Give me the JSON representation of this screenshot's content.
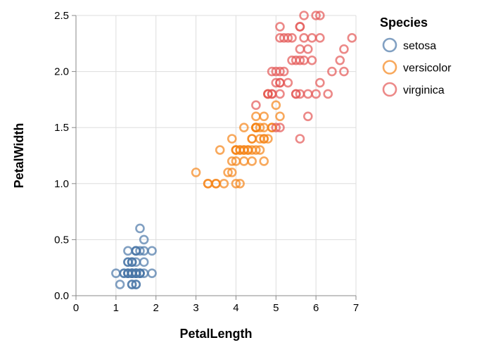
{
  "chart_data": {
    "type": "scatter",
    "xlabel": "PetalLength",
    "ylabel": "PetalWidth",
    "xlim": [
      0,
      7
    ],
    "ylim": [
      0,
      2.5
    ],
    "x_ticks": [
      "0",
      "1",
      "2",
      "3",
      "4",
      "5",
      "6",
      "7"
    ],
    "y_ticks": [
      "0.0",
      "0.5",
      "1.0",
      "1.5",
      "2.0",
      "2.5"
    ],
    "grid": true,
    "legend": {
      "title": "Species",
      "position": "right"
    },
    "series": [
      {
        "name": "setosa",
        "color": "#4c78a8",
        "points": [
          [
            1.4,
            0.2
          ],
          [
            1.4,
            0.2
          ],
          [
            1.3,
            0.2
          ],
          [
            1.5,
            0.2
          ],
          [
            1.4,
            0.2
          ],
          [
            1.7,
            0.4
          ],
          [
            1.4,
            0.3
          ],
          [
            1.5,
            0.2
          ],
          [
            1.4,
            0.2
          ],
          [
            1.5,
            0.1
          ],
          [
            1.5,
            0.2
          ],
          [
            1.6,
            0.2
          ],
          [
            1.4,
            0.1
          ],
          [
            1.1,
            0.1
          ],
          [
            1.2,
            0.2
          ],
          [
            1.5,
            0.4
          ],
          [
            1.3,
            0.4
          ],
          [
            1.4,
            0.3
          ],
          [
            1.7,
            0.3
          ],
          [
            1.5,
            0.3
          ],
          [
            1.7,
            0.2
          ],
          [
            1.5,
            0.4
          ],
          [
            1.0,
            0.2
          ],
          [
            1.7,
            0.5
          ],
          [
            1.9,
            0.2
          ],
          [
            1.6,
            0.2
          ],
          [
            1.6,
            0.4
          ],
          [
            1.5,
            0.2
          ],
          [
            1.4,
            0.2
          ],
          [
            1.6,
            0.2
          ],
          [
            1.6,
            0.2
          ],
          [
            1.5,
            0.4
          ],
          [
            1.5,
            0.1
          ],
          [
            1.4,
            0.2
          ],
          [
            1.5,
            0.2
          ],
          [
            1.2,
            0.2
          ],
          [
            1.3,
            0.2
          ],
          [
            1.4,
            0.1
          ],
          [
            1.3,
            0.2
          ],
          [
            1.5,
            0.2
          ],
          [
            1.3,
            0.3
          ],
          [
            1.3,
            0.3
          ],
          [
            1.3,
            0.2
          ],
          [
            1.6,
            0.6
          ],
          [
            1.9,
            0.4
          ],
          [
            1.4,
            0.3
          ],
          [
            1.6,
            0.2
          ],
          [
            1.4,
            0.2
          ],
          [
            1.5,
            0.2
          ],
          [
            1.4,
            0.2
          ]
        ]
      },
      {
        "name": "versicolor",
        "color": "#f58518",
        "points": [
          [
            4.7,
            1.4
          ],
          [
            4.5,
            1.5
          ],
          [
            4.9,
            1.5
          ],
          [
            4.0,
            1.3
          ],
          [
            4.6,
            1.5
          ],
          [
            4.5,
            1.3
          ],
          [
            4.7,
            1.6
          ],
          [
            3.3,
            1.0
          ],
          [
            4.6,
            1.3
          ],
          [
            3.9,
            1.4
          ],
          [
            3.5,
            1.0
          ],
          [
            4.2,
            1.5
          ],
          [
            4.0,
            1.0
          ],
          [
            4.7,
            1.4
          ],
          [
            3.6,
            1.3
          ],
          [
            4.4,
            1.4
          ],
          [
            4.5,
            1.5
          ],
          [
            4.1,
            1.0
          ],
          [
            4.5,
            1.5
          ],
          [
            3.9,
            1.1
          ],
          [
            4.8,
            1.8
          ],
          [
            4.0,
            1.3
          ],
          [
            4.9,
            1.5
          ],
          [
            4.7,
            1.2
          ],
          [
            4.3,
            1.3
          ],
          [
            4.4,
            1.4
          ],
          [
            4.8,
            1.4
          ],
          [
            5.0,
            1.7
          ],
          [
            4.5,
            1.5
          ],
          [
            3.5,
            1.0
          ],
          [
            3.8,
            1.1
          ],
          [
            3.7,
            1.0
          ],
          [
            3.9,
            1.2
          ],
          [
            5.1,
            1.6
          ],
          [
            4.5,
            1.5
          ],
          [
            4.5,
            1.6
          ],
          [
            4.7,
            1.5
          ],
          [
            4.4,
            1.3
          ],
          [
            4.1,
            1.3
          ],
          [
            4.0,
            1.3
          ],
          [
            4.4,
            1.2
          ],
          [
            4.6,
            1.4
          ],
          [
            4.0,
            1.2
          ],
          [
            3.3,
            1.0
          ],
          [
            4.2,
            1.3
          ],
          [
            4.2,
            1.2
          ],
          [
            4.2,
            1.3
          ],
          [
            4.3,
            1.3
          ],
          [
            3.0,
            1.1
          ],
          [
            4.1,
            1.3
          ]
        ]
      },
      {
        "name": "virginica",
        "color": "#e45756",
        "points": [
          [
            6.0,
            2.5
          ],
          [
            5.1,
            1.9
          ],
          [
            5.9,
            2.1
          ],
          [
            5.6,
            1.8
          ],
          [
            5.8,
            2.2
          ],
          [
            6.6,
            2.1
          ],
          [
            4.5,
            1.7
          ],
          [
            6.3,
            1.8
          ],
          [
            5.8,
            1.8
          ],
          [
            6.1,
            2.5
          ],
          [
            5.1,
            2.0
          ],
          [
            5.3,
            1.9
          ],
          [
            5.5,
            2.1
          ],
          [
            5.0,
            2.0
          ],
          [
            5.1,
            2.4
          ],
          [
            5.3,
            2.3
          ],
          [
            5.5,
            1.8
          ],
          [
            6.7,
            2.2
          ],
          [
            6.9,
            2.3
          ],
          [
            5.0,
            1.5
          ],
          [
            5.7,
            2.3
          ],
          [
            4.9,
            2.0
          ],
          [
            6.7,
            2.0
          ],
          [
            4.9,
            1.8
          ],
          [
            5.7,
            2.1
          ],
          [
            6.0,
            1.8
          ],
          [
            4.8,
            1.8
          ],
          [
            4.9,
            1.8
          ],
          [
            5.6,
            2.1
          ],
          [
            5.8,
            1.6
          ],
          [
            6.1,
            1.9
          ],
          [
            6.4,
            2.0
          ],
          [
            5.6,
            2.2
          ],
          [
            5.1,
            1.5
          ],
          [
            5.6,
            1.4
          ],
          [
            6.1,
            2.3
          ],
          [
            5.6,
            2.4
          ],
          [
            5.5,
            1.8
          ],
          [
            4.8,
            1.8
          ],
          [
            5.4,
            2.1
          ],
          [
            5.6,
            2.4
          ],
          [
            5.1,
            2.3
          ],
          [
            5.1,
            1.9
          ],
          [
            5.9,
            2.3
          ],
          [
            5.7,
            2.5
          ],
          [
            5.2,
            2.3
          ],
          [
            5.0,
            1.9
          ],
          [
            5.2,
            2.0
          ],
          [
            5.4,
            2.3
          ],
          [
            5.1,
            1.8
          ]
        ]
      }
    ]
  }
}
